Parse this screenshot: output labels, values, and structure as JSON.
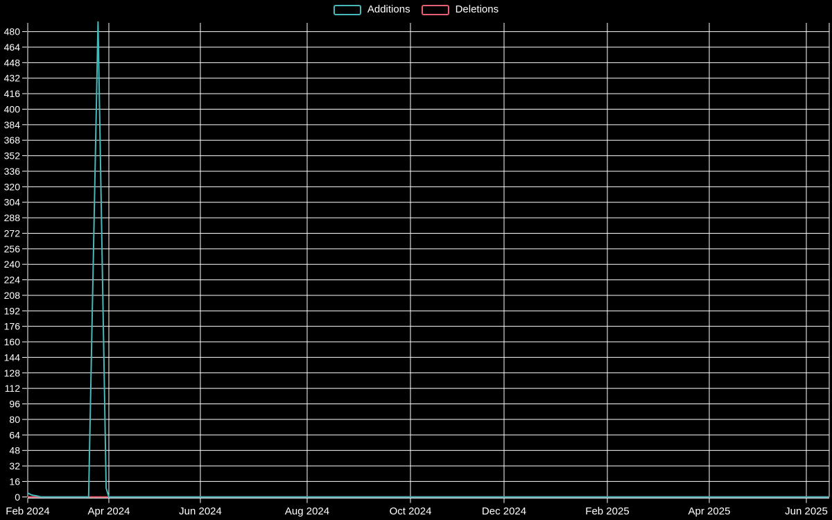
{
  "colors": {
    "background": "#000000",
    "grid": "#ffffff",
    "tick_text": "#ffffff",
    "axis_line": "#dfe3e6",
    "additions": "#47b9bd",
    "deletions": "#e85f73"
  },
  "chart_data": {
    "type": "line",
    "title": "",
    "xlabel": "",
    "ylabel": "",
    "grid": true,
    "legend_position": "top-center",
    "ylim": [
      0,
      490
    ],
    "y_ticks": [
      0,
      16,
      32,
      48,
      64,
      80,
      96,
      112,
      128,
      144,
      160,
      176,
      192,
      208,
      224,
      240,
      256,
      272,
      288,
      304,
      320,
      336,
      352,
      368,
      384,
      400,
      416,
      432,
      448,
      464,
      480
    ],
    "x_tick_labels": [
      "Feb 2024",
      "Apr 2024",
      "Jun 2024",
      "Aug 2024",
      "Oct 2024",
      "Dec 2024",
      "Feb 2025",
      "Apr 2025",
      "Jun 2025"
    ],
    "x_tick_dates": [
      "2024-02-01",
      "2024-04-01",
      "2024-06-01",
      "2024-08-01",
      "2024-10-01",
      "2024-12-01",
      "2025-02-01",
      "2025-04-01",
      "2025-06-01"
    ],
    "x_end_date": "2025-06-15",
    "series": [
      {
        "name": "Additions",
        "color": "#47b9bd",
        "points": [
          {
            "date": "2024-02-01",
            "value": 4
          },
          {
            "date": "2024-02-04",
            "value": 2
          },
          {
            "date": "2024-02-08",
            "value": 1
          },
          {
            "date": "2024-02-11",
            "value": 0
          },
          {
            "date": "2024-03-17",
            "value": 0
          },
          {
            "date": "2024-03-24",
            "value": 490
          },
          {
            "date": "2024-03-30",
            "value": 9
          },
          {
            "date": "2024-04-01",
            "value": 0
          },
          {
            "date": "2025-06-15",
            "value": 0
          }
        ]
      },
      {
        "name": "Deletions",
        "color": "#e85f73",
        "points": [
          {
            "date": "2024-02-01",
            "value": 0
          },
          {
            "date": "2025-06-15",
            "value": 0
          }
        ]
      }
    ]
  }
}
